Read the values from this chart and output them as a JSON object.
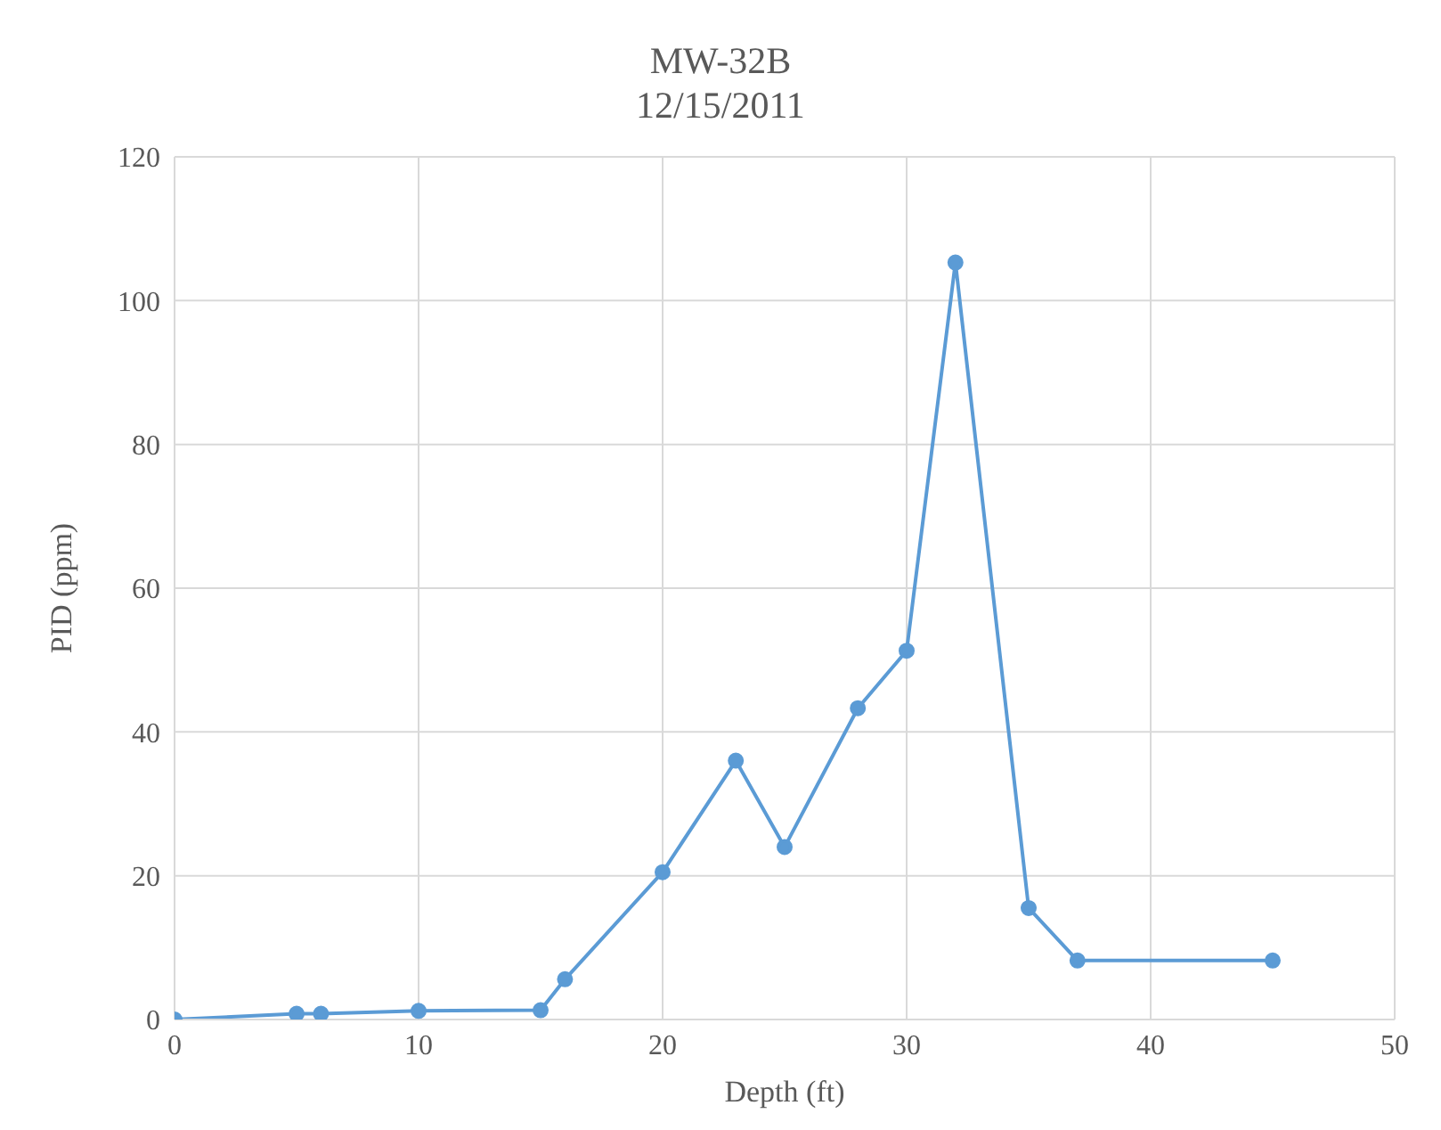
{
  "chart_data": {
    "type": "line",
    "title": "MW-32B",
    "subtitle": "12/15/2011",
    "xlabel": "Depth (ft)",
    "ylabel": "PID (ppm)",
    "x": [
      0,
      5,
      6,
      10,
      15,
      16,
      20,
      23,
      25,
      28,
      30,
      32,
      35,
      37,
      45
    ],
    "series": [
      {
        "color": "#5b9bd5",
        "values": [
          0,
          0.8,
          0.8,
          1.2,
          1.3,
          5.6,
          20.5,
          36,
          24,
          43.3,
          51.3,
          105.3,
          15.5,
          8.2,
          8.2
        ]
      }
    ],
    "xlim": [
      0,
      50
    ],
    "xticks": [
      0,
      10,
      20,
      30,
      40,
      50
    ],
    "ylim": [
      0,
      120
    ],
    "yticks": [
      0,
      20,
      40,
      60,
      80,
      100,
      120
    ],
    "grid": true,
    "marker": "circle",
    "line_style": "solid",
    "legend": false
  }
}
